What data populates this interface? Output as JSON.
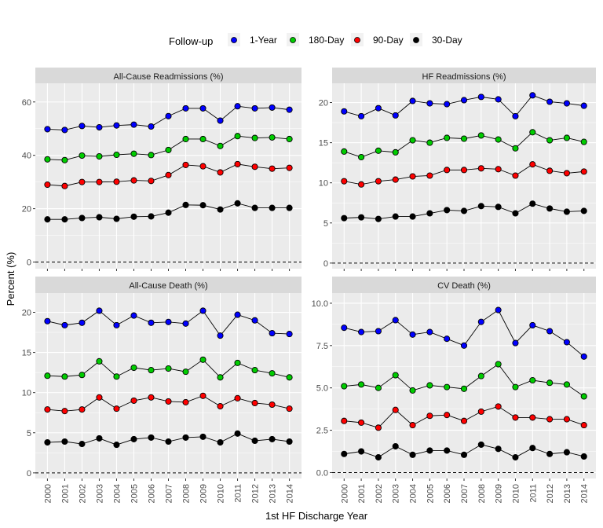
{
  "legend": {
    "title": "Follow-up",
    "position": "top",
    "items": [
      {
        "label": "1-Year",
        "color": "#0000ff"
      },
      {
        "label": "180-Day",
        "color": "#00cc00"
      },
      {
        "label": "90-Day",
        "color": "#ff0000"
      },
      {
        "label": "30-Day",
        "color": "#000000"
      }
    ]
  },
  "axes": {
    "xlabel": "1st HF Discharge Year",
    "ylabel": "Percent (%)"
  },
  "chart_data": {
    "type": "line",
    "x": [
      "2000",
      "2001",
      "2002",
      "2003",
      "2004",
      "2005",
      "2006",
      "2007",
      "2008",
      "2009",
      "2010",
      "2011",
      "2012",
      "2013",
      "2014"
    ],
    "grid": true,
    "reference_line": 0,
    "panels": [
      {
        "title": "All-Cause Readmissions (%)",
        "ylim": [
          -2.5,
          67
        ],
        "yticks": [
          0,
          20,
          40,
          60
        ],
        "series": [
          {
            "name": "1-Year",
            "values": [
              49.8,
              49.5,
              51.0,
              50.5,
              51.2,
              51.5,
              50.8,
              54.7,
              57.6,
              57.6,
              53.0,
              58.4,
              57.6,
              57.9,
              57.1
            ]
          },
          {
            "name": "180-Day",
            "values": [
              38.5,
              38.2,
              39.9,
              39.6,
              40.2,
              40.6,
              40.1,
              42.0,
              46.1,
              46.1,
              43.5,
              47.2,
              46.5,
              46.7,
              46.1
            ]
          },
          {
            "name": "90-Day",
            "values": [
              29.0,
              28.5,
              30.0,
              30.0,
              30.1,
              30.6,
              30.4,
              32.6,
              36.4,
              35.9,
              33.6,
              36.7,
              35.7,
              35.0,
              35.3
            ]
          },
          {
            "name": "30-Day",
            "values": [
              16.0,
              16.0,
              16.5,
              16.8,
              16.2,
              17.0,
              17.1,
              18.5,
              21.4,
              21.3,
              19.7,
              22.0,
              20.3,
              20.3,
              20.3
            ]
          }
        ]
      },
      {
        "title": "HF Readmissions (%)",
        "ylim": [
          -0.7,
          22.4
        ],
        "yticks": [
          0,
          5,
          10,
          15,
          20
        ],
        "series": [
          {
            "name": "1-Year",
            "values": [
              18.9,
              18.3,
              19.3,
              18.4,
              20.2,
              19.9,
              19.8,
              20.3,
              20.7,
              20.4,
              18.3,
              20.9,
              20.1,
              19.9,
              19.6
            ]
          },
          {
            "name": "180-Day",
            "values": [
              13.9,
              13.2,
              14.0,
              13.8,
              15.3,
              15.0,
              15.6,
              15.5,
              15.9,
              15.4,
              14.3,
              16.3,
              15.3,
              15.6,
              15.1
            ]
          },
          {
            "name": "90-Day",
            "values": [
              10.2,
              9.8,
              10.2,
              10.4,
              10.8,
              10.9,
              11.6,
              11.6,
              11.8,
              11.7,
              10.9,
              12.3,
              11.5,
              11.2,
              11.4
            ]
          },
          {
            "name": "30-Day",
            "values": [
              5.6,
              5.7,
              5.5,
              5.8,
              5.8,
              6.2,
              6.6,
              6.5,
              7.1,
              7.0,
              6.2,
              7.4,
              6.8,
              6.4,
              6.5
            ]
          }
        ]
      },
      {
        "title": "All-Cause Death (%)",
        "ylim": [
          -0.7,
          22.4
        ],
        "yticks": [
          0,
          5,
          10,
          15,
          20
        ],
        "series": [
          {
            "name": "1-Year",
            "values": [
              18.9,
              18.4,
              18.7,
              20.2,
              18.4,
              19.6,
              18.7,
              18.8,
              18.6,
              20.2,
              17.1,
              19.7,
              19.0,
              17.4,
              17.3
            ]
          },
          {
            "name": "180-Day",
            "values": [
              12.1,
              12.0,
              12.2,
              13.9,
              12.0,
              13.1,
              12.8,
              13.0,
              12.6,
              14.1,
              11.9,
              13.7,
              12.8,
              12.4,
              11.9
            ]
          },
          {
            "name": "90-Day",
            "values": [
              7.9,
              7.7,
              7.9,
              9.4,
              8.0,
              9.0,
              9.4,
              8.9,
              8.8,
              9.6,
              8.3,
              9.3,
              8.7,
              8.5,
              8.0
            ]
          },
          {
            "name": "30-Day",
            "values": [
              3.8,
              3.9,
              3.6,
              4.3,
              3.5,
              4.2,
              4.4,
              3.9,
              4.4,
              4.5,
              3.8,
              4.9,
              4.0,
              4.2,
              3.9
            ]
          }
        ]
      },
      {
        "title": "CV Death (%)",
        "ylim": [
          -0.35,
          10.6
        ],
        "yticks": [
          0,
          2.5,
          5,
          7.5,
          10
        ],
        "yticklabels": [
          "0.0",
          "2.5",
          "5.0",
          "7.5",
          "10.0"
        ],
        "series": [
          {
            "name": "1-Year",
            "values": [
              8.55,
              8.3,
              8.35,
              9.0,
              8.15,
              8.3,
              7.9,
              7.5,
              8.9,
              9.6,
              7.65,
              8.7,
              8.35,
              7.7,
              6.85
            ]
          },
          {
            "name": "180-Day",
            "values": [
              5.1,
              5.2,
              5.0,
              5.75,
              4.85,
              5.15,
              5.05,
              4.95,
              5.7,
              6.4,
              5.05,
              5.45,
              5.3,
              5.2,
              4.5
            ]
          },
          {
            "name": "90-Day",
            "values": [
              3.05,
              2.95,
              2.65,
              3.7,
              2.8,
              3.35,
              3.4,
              3.05,
              3.6,
              3.9,
              3.25,
              3.25,
              3.15,
              3.15,
              2.8
            ]
          },
          {
            "name": "30-Day",
            "values": [
              1.1,
              1.25,
              0.9,
              1.55,
              1.05,
              1.3,
              1.3,
              1.05,
              1.65,
              1.4,
              0.9,
              1.45,
              1.1,
              1.2,
              0.95
            ]
          }
        ]
      }
    ]
  }
}
